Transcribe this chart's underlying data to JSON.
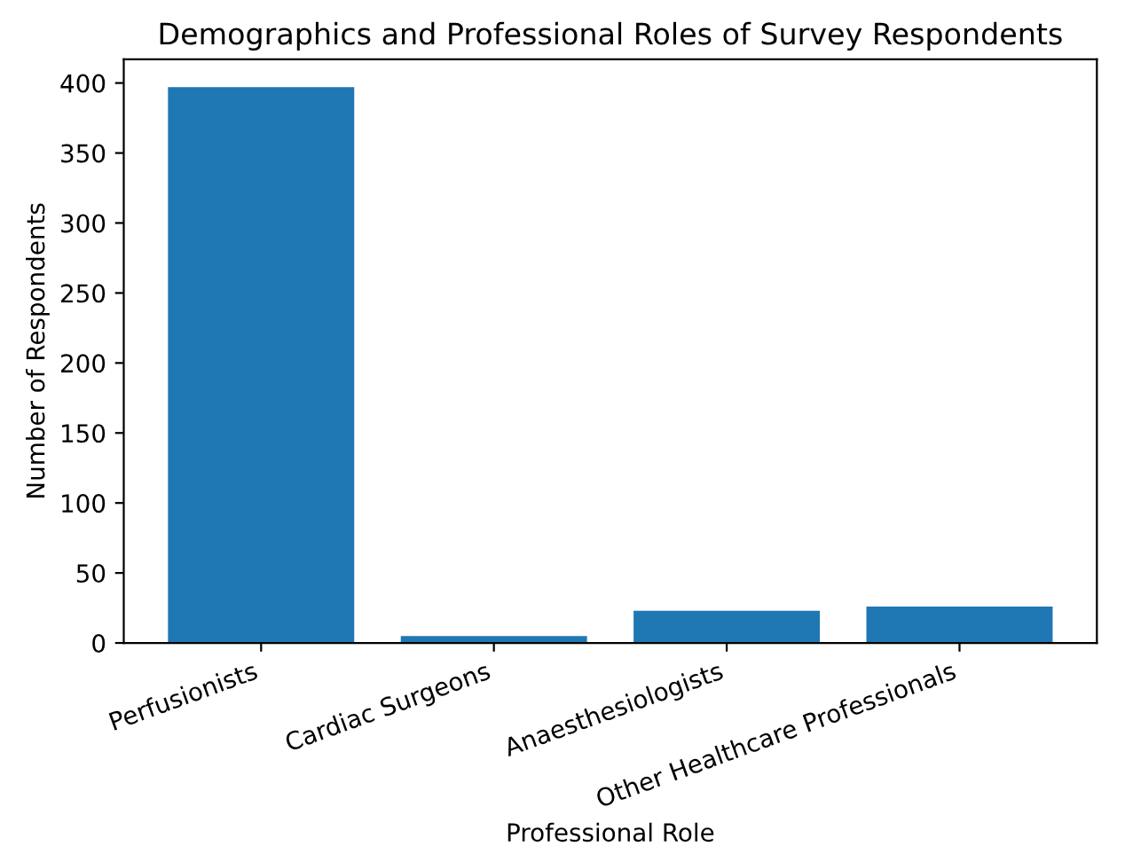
{
  "chart_data": {
    "type": "bar",
    "title": "Demographics and Professional Roles of Survey Respondents",
    "xlabel": "Professional Role",
    "ylabel": "Number of Respondents",
    "categories": [
      "Perfusionists",
      "Cardiac Surgeons",
      "Anaesthesiologists",
      "Other Healthcare Professionals"
    ],
    "values": [
      397,
      5,
      23,
      26
    ],
    "color": "#1f77b4",
    "ylim": [
      0,
      417
    ],
    "yticks": [
      0,
      50,
      100,
      150,
      200,
      250,
      300,
      350,
      400
    ],
    "grid": false
  }
}
